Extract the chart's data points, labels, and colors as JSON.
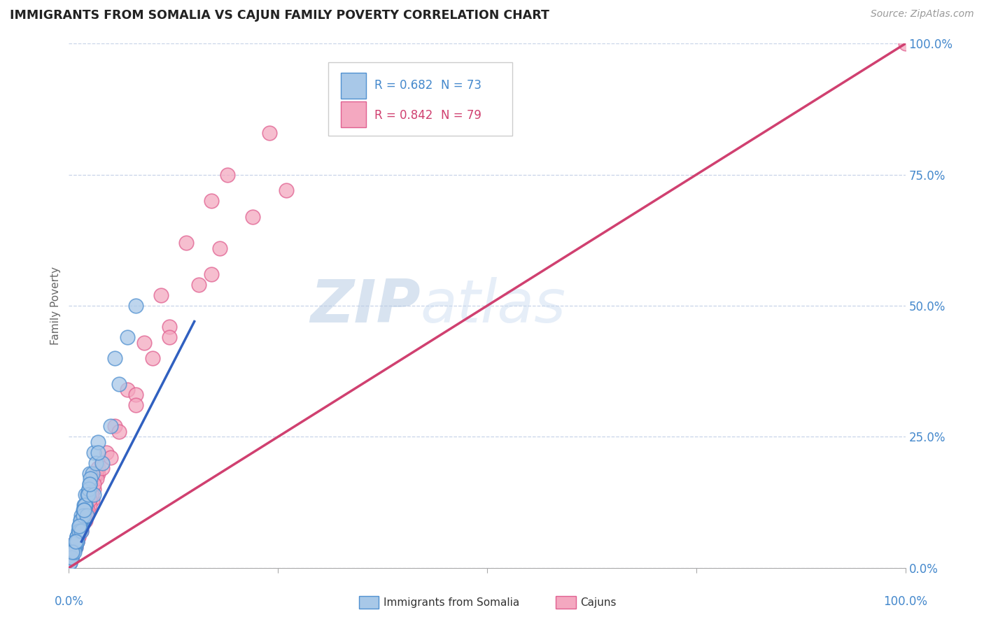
{
  "title": "IMMIGRANTS FROM SOMALIA VS CAJUN FAMILY POVERTY CORRELATION CHART",
  "source_text": "Source: ZipAtlas.com",
  "ylabel": "Family Poverty",
  "xlim": [
    0,
    100
  ],
  "ylim": [
    0,
    100
  ],
  "ytick_positions": [
    0,
    25,
    50,
    75,
    100
  ],
  "ytick_labels": [
    "0.0%",
    "25.0%",
    "50.0%",
    "75.0%",
    "100.0%"
  ],
  "watermark_zip": "ZIP",
  "watermark_atlas": "atlas",
  "legend_r1": "R = 0.682",
  "legend_n1": "N = 73",
  "legend_r2": "R = 0.842",
  "legend_n2": "N = 79",
  "legend_label1": "Immigrants from Somalia",
  "legend_label2": "Cajuns",
  "series1_color": "#a8c8e8",
  "series2_color": "#f4a8c0",
  "series1_edge": "#5090d0",
  "series2_edge": "#e06090",
  "line1_color": "#3060c0",
  "line2_color": "#d04070",
  "ref_line_color": "#c0c8d8",
  "background_color": "#ffffff",
  "grid_color": "#c8d4e8",
  "Somalia_x": [
    0.3,
    0.5,
    0.7,
    1.0,
    1.2,
    1.5,
    1.8,
    2.0,
    2.5,
    3.0,
    0.2,
    0.4,
    0.6,
    0.9,
    1.1,
    1.4,
    1.7,
    2.2,
    2.8,
    3.5,
    0.1,
    0.3,
    0.5,
    0.8,
    1.0,
    1.3,
    1.6,
    2.0,
    2.4,
    0.2,
    0.4,
    0.7,
    1.0,
    1.5,
    2.0,
    2.5,
    0.3,
    0.6,
    1.0,
    1.4,
    1.9,
    2.6,
    0.5,
    0.9,
    1.3,
    1.8,
    2.4,
    3.2,
    0.2,
    0.4,
    0.8,
    1.2,
    1.7,
    2.3,
    0.1,
    0.3,
    0.6,
    1.0,
    1.5,
    2.1,
    3.0,
    4.0,
    5.0,
    6.0,
    7.0,
    8.0,
    0.4,
    0.8,
    1.2,
    1.8,
    2.5,
    3.5,
    5.5
  ],
  "Somalia_y": [
    2,
    3,
    4,
    6,
    8,
    10,
    12,
    14,
    18,
    22,
    2,
    3,
    4,
    5,
    7,
    9,
    11,
    14,
    18,
    24,
    1,
    2,
    3,
    4,
    5,
    7,
    9,
    12,
    15,
    2,
    3,
    4,
    6,
    9,
    12,
    16,
    2,
    4,
    6,
    9,
    12,
    17,
    3,
    5,
    8,
    11,
    15,
    20,
    2,
    3,
    5,
    7,
    10,
    14,
    1,
    2,
    3,
    5,
    7,
    10,
    14,
    20,
    27,
    35,
    44,
    50,
    3,
    5,
    8,
    11,
    16,
    22,
    40
  ],
  "Cajun_x": [
    0.5,
    1.0,
    1.5,
    2.0,
    2.5,
    3.0,
    0.3,
    0.8,
    1.2,
    1.8,
    2.3,
    3.5,
    0.2,
    0.7,
    1.1,
    1.6,
    2.4,
    3.5,
    0.4,
    0.9,
    1.4,
    2.0,
    3.0,
    0.6,
    1.4,
    2.1,
    3.2,
    0.1,
    0.5,
    1.0,
    1.5,
    2.0,
    2.8,
    0.3,
    0.8,
    1.3,
    1.9,
    2.7,
    0.2,
    0.6,
    1.1,
    1.7,
    2.5,
    0.4,
    0.9,
    1.5,
    2.2,
    3.3,
    0.7,
    1.3,
    2.0,
    3.0,
    4.5,
    5.5,
    7.0,
    9.0,
    11.0,
    14.0,
    17.0,
    19.0,
    24.0,
    0.3,
    0.8,
    1.5,
    2.5,
    4.0,
    6.0,
    8.0,
    10.0,
    12.0,
    15.5,
    18.0,
    22.0,
    26.0,
    5.0,
    8.0,
    12.0,
    17.0,
    100.0
  ],
  "Cajun_y": [
    3,
    5,
    8,
    11,
    14,
    17,
    2,
    5,
    7,
    10,
    13,
    18,
    2,
    4,
    6,
    9,
    13,
    19,
    3,
    5,
    8,
    11,
    15,
    4,
    8,
    12,
    18,
    1,
    3,
    5,
    7,
    9,
    13,
    2,
    4,
    7,
    10,
    14,
    2,
    4,
    6,
    9,
    12,
    3,
    5,
    8,
    11,
    17,
    4,
    7,
    11,
    16,
    22,
    27,
    34,
    43,
    52,
    62,
    70,
    75,
    83,
    2,
    5,
    8,
    13,
    19,
    26,
    33,
    40,
    46,
    54,
    61,
    67,
    72,
    21,
    31,
    44,
    56,
    100
  ],
  "line1_x_start": 1.5,
  "line1_x_end": 15.0,
  "line1_y_start": 5.0,
  "line1_y_end": 47.0,
  "line2_x_start": 0.0,
  "line2_x_end": 100.0,
  "line2_y_start": 0.0,
  "line2_y_end": 100.0
}
